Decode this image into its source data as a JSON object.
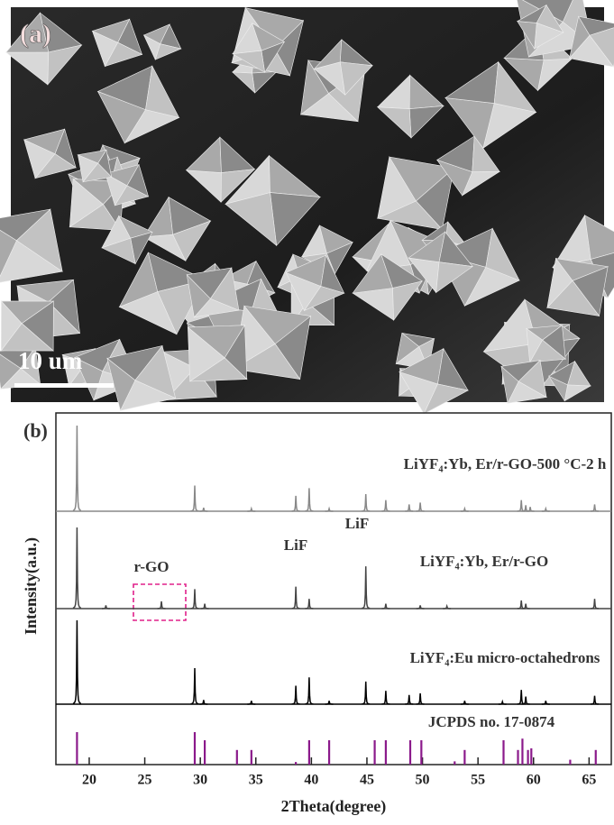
{
  "panel_a": {
    "label": "(a)",
    "scale_bar": "10 um"
  },
  "chart_data": {
    "type": "line",
    "panel_label": "(b)",
    "xlabel": "2Theta(degree)",
    "ylabel": "Intensity(a.u.)",
    "xlim": [
      17,
      67
    ],
    "xticks": [
      20,
      25,
      30,
      35,
      40,
      45,
      50,
      55,
      60,
      65
    ],
    "annotations": [
      "r-GO",
      "LiF",
      "LiF"
    ],
    "series": [
      {
        "name": "LiYF₄:Yb, Er/r-GO-500 °C-2 h",
        "color": "#888888",
        "kind": "pattern",
        "x": [
          18.9,
          29.5,
          30.3,
          34.6,
          38.6,
          39.8,
          41.6,
          44.9,
          46.7,
          48.8,
          49.8,
          53.8,
          58.9,
          59.3,
          59.7,
          61.1,
          65.5
        ],
        "values": [
          100,
          30,
          4,
          3,
          18,
          27,
          3,
          20,
          13,
          8,
          10,
          3,
          13,
          7,
          5,
          3,
          8
        ]
      },
      {
        "name": "LiYF₄:Yb, Er/r-GO",
        "color": "#444444",
        "kind": "pattern",
        "x": [
          18.9,
          21.5,
          26.5,
          29.5,
          30.4,
          38.6,
          39.8,
          44.9,
          46.7,
          49.8,
          52.2,
          58.9,
          59.3,
          65.5
        ],
        "values": [
          100,
          4,
          9,
          24,
          6,
          27,
          12,
          52,
          6,
          4,
          3,
          10,
          6,
          12
        ]
      },
      {
        "name": "LiYF₄:Eu micro-octahedrons",
        "color": "#000000",
        "kind": "pattern",
        "x": [
          18.9,
          29.5,
          30.3,
          34.6,
          38.6,
          39.8,
          41.6,
          44.9,
          46.7,
          48.8,
          49.8,
          53.8,
          57.2,
          58.9,
          59.3,
          61.1,
          65.5
        ],
        "values": [
          100,
          43,
          5,
          4,
          22,
          32,
          4,
          27,
          16,
          11,
          13,
          4,
          3,
          17,
          9,
          4,
          10
        ]
      },
      {
        "name": "JCPDS no. 17-0874",
        "color": "#8b1a8b",
        "kind": "stick",
        "x": [
          18.9,
          29.5,
          30.4,
          33.3,
          34.6,
          38.6,
          39.8,
          41.6,
          45.7,
          46.7,
          48.9,
          49.9,
          52.9,
          53.8,
          57.3,
          58.6,
          59.0,
          59.5,
          59.8,
          63.3,
          65.6
        ],
        "values": [
          100,
          100,
          75,
          45,
          45,
          8,
          75,
          75,
          75,
          75,
          75,
          75,
          10,
          45,
          75,
          45,
          80,
          45,
          50,
          15,
          45
        ]
      }
    ]
  }
}
